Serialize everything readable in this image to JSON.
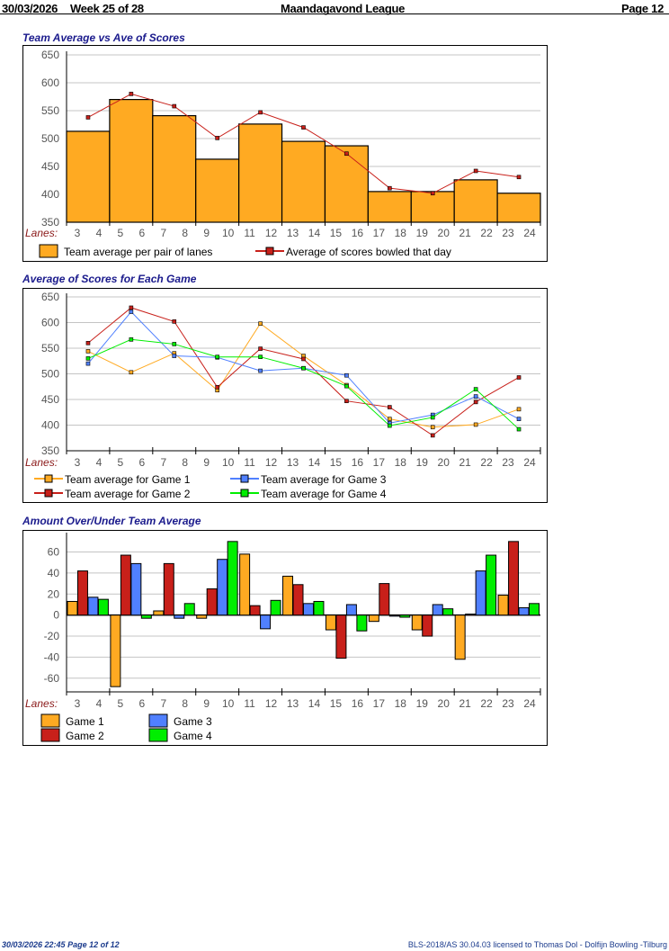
{
  "header": {
    "date": "30/03/2026",
    "week": "Week 25 of 28",
    "league": "Maandagavond League",
    "page": "Page 12"
  },
  "footer": {
    "left": "30/03/2026  22:45  Page 12 of 12",
    "right": "BLS-2018/AS 30.04.03 licensed to Thomas Dol - Dolfijn Bowling -Tilburg"
  },
  "colors": {
    "orange": "#FFAA22",
    "red": "#C8201A",
    "blue": "#5080FF",
    "green": "#00EE00",
    "title": "#1a1a8c",
    "lanes_label": "#8B1A1A"
  },
  "lanes": [
    "3",
    "4",
    "5",
    "6",
    "7",
    "8",
    "9",
    "10",
    "11",
    "12",
    "13",
    "14",
    "15",
    "16",
    "17",
    "18",
    "19",
    "20",
    "21",
    "22",
    "23",
    "24"
  ],
  "chart_data": [
    {
      "type": "bar",
      "title": "Team Average vs Ave of Scores",
      "xlabel": "Lanes:",
      "categories": [
        "3-4",
        "5-6",
        "7-8",
        "9-10",
        "11-12",
        "13-14",
        "15-16",
        "17-18",
        "19-20",
        "21-22",
        "23-24"
      ],
      "ylim": [
        350,
        650
      ],
      "yticks": [
        350,
        400,
        450,
        500,
        550,
        600,
        650
      ],
      "grid": true,
      "legend": "bottom",
      "series": [
        {
          "name": "Team average per pair of lanes",
          "kind": "bar",
          "color": "#FFAA22",
          "values": [
            513,
            570,
            541,
            463,
            526,
            495,
            487,
            405,
            405,
            426,
            402
          ]
        },
        {
          "name": "Average of scores bowled that day",
          "kind": "line",
          "color": "#C8201A",
          "values": [
            538,
            580,
            558,
            501,
            547,
            520,
            473,
            411,
            402,
            442,
            431
          ]
        }
      ]
    },
    {
      "type": "line",
      "title": "Average of Scores for Each Game",
      "xlabel": "Lanes:",
      "categories": [
        "3-4",
        "5-6",
        "7-8",
        "9-10",
        "11-12",
        "13-14",
        "15-16",
        "17-18",
        "19-20",
        "21-22",
        "23-24"
      ],
      "ylim": [
        350,
        650
      ],
      "yticks": [
        350,
        400,
        450,
        500,
        550,
        600,
        650
      ],
      "grid": true,
      "legend": "bottom",
      "series": [
        {
          "name": "Team average for Game 1",
          "color": "#FFAA22",
          "values": [
            544,
            503,
            540,
            468,
            598,
            535,
            478,
            412,
            396,
            401,
            431
          ]
        },
        {
          "name": "Team average for Game 2",
          "color": "#C8201A",
          "values": [
            560,
            629,
            602,
            474,
            549,
            529,
            447,
            435,
            380,
            445,
            493
          ]
        },
        {
          "name": "Team average for Game 3",
          "color": "#5080FF",
          "values": [
            520,
            621,
            535,
            532,
            506,
            511,
            497,
            404,
            420,
            456,
            412
          ]
        },
        {
          "name": "Team average for Game 4",
          "color": "#00EE00",
          "values": [
            530,
            567,
            558,
            533,
            533,
            511,
            476,
            399,
            415,
            470,
            392
          ]
        }
      ]
    },
    {
      "type": "bar",
      "title": "Amount Over/Under Team Average",
      "xlabel": "Lanes:",
      "categories": [
        "3-4",
        "5-6",
        "7-8",
        "9-10",
        "11-12",
        "13-14",
        "15-16",
        "17-18",
        "19-20",
        "21-22",
        "23-24"
      ],
      "ylim": [
        -73,
        75
      ],
      "yticks": [
        -60,
        -40,
        -20,
        0,
        20,
        40,
        60
      ],
      "grid": true,
      "legend": "bottom",
      "series": [
        {
          "name": "Game 1",
          "color": "#FFAA22",
          "values": [
            13,
            -68,
            4,
            -3,
            58,
            37,
            -14,
            -6,
            -14,
            -42,
            19
          ]
        },
        {
          "name": "Game 2",
          "color": "#C8201A",
          "values": [
            42,
            57,
            49,
            25,
            9,
            29,
            -41,
            30,
            -20,
            1,
            70
          ]
        },
        {
          "name": "Game 3",
          "color": "#5080FF",
          "values": [
            17,
            49,
            -3,
            53,
            -13,
            11,
            10,
            -1,
            10,
            42,
            7
          ]
        },
        {
          "name": "Game 4",
          "color": "#00EE00",
          "values": [
            15,
            -3,
            11,
            70,
            14,
            13,
            -15,
            -2,
            6,
            57,
            11
          ]
        }
      ]
    }
  ]
}
